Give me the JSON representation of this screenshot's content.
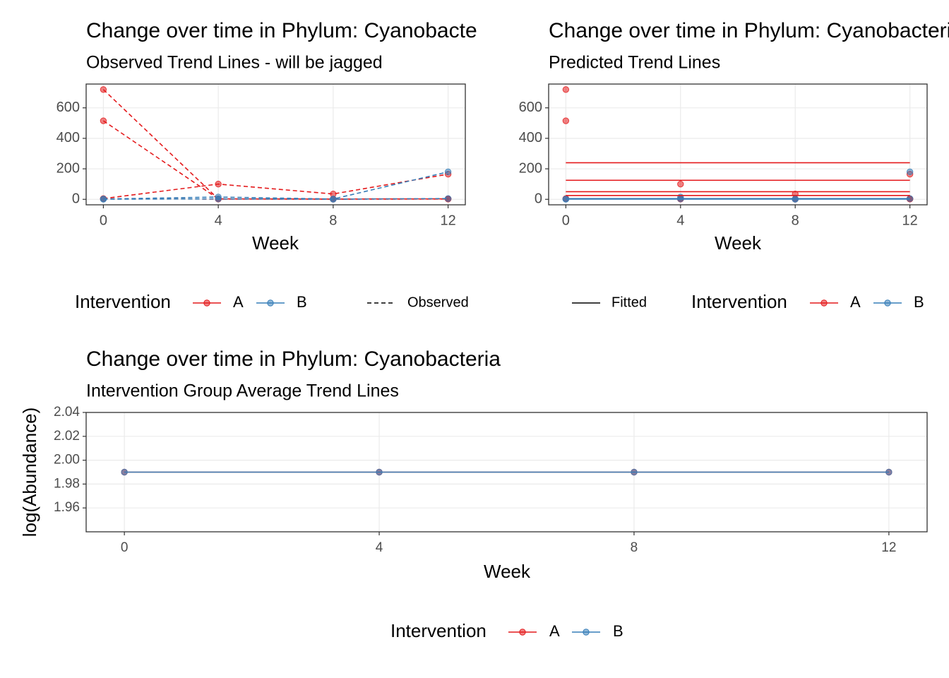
{
  "chart_data": [
    {
      "type": "line",
      "title": "Change over time in Phylum: Cyanobacteria",
      "subtitle": "Observed Trend Lines - will be jagged",
      "x_label": "Week",
      "x": [
        0,
        4,
        8,
        12
      ],
      "xlim": [
        -0.6,
        12.6
      ],
      "xticks": [
        0,
        4,
        8,
        12
      ],
      "ylim": [
        -36,
        756
      ],
      "yticks": [
        0,
        200,
        400,
        600
      ],
      "grid": true,
      "series": [
        {
          "color": "#e41a1c",
          "style": "dashed",
          "points": true,
          "values": [
            720,
            2,
            1,
            2
          ]
        },
        {
          "color": "#e41a1c",
          "style": "dashed",
          "points": true,
          "values": [
            515,
            3,
            2,
            3
          ]
        },
        {
          "color": "#e41a1c",
          "style": "dashed",
          "points": true,
          "values": [
            5,
            100,
            35,
            165
          ]
        },
        {
          "color": "#e41a1c",
          "style": "dashed",
          "points": true,
          "values": [
            3,
            2,
            2,
            3
          ]
        },
        {
          "color": "#377eb8",
          "style": "dashed",
          "points": true,
          "values": [
            2,
            15,
            2,
            180
          ]
        },
        {
          "color": "#377eb8",
          "style": "dashed",
          "points": true,
          "values": [
            1,
            3,
            1,
            5
          ]
        }
      ],
      "legend": {
        "title": "Intervention",
        "items": [
          {
            "label": "A",
            "color": "#e41a1c"
          },
          {
            "label": "B",
            "color": "#377eb8"
          }
        ],
        "linetype": {
          "label": "Observed",
          "style": "dashed"
        }
      }
    },
    {
      "type": "line",
      "title": "Change over time in Phylum: Cyanobacteria",
      "subtitle": "Predicted Trend Lines",
      "x_label": "Week",
      "x": [
        0,
        4,
        8,
        12
      ],
      "xlim": [
        -0.6,
        12.6
      ],
      "xticks": [
        0,
        4,
        8,
        12
      ],
      "ylim": [
        -36,
        756
      ],
      "yticks": [
        0,
        200,
        400,
        600
      ],
      "grid": true,
      "series": [
        {
          "color": "#e41a1c",
          "style": "none",
          "points": true,
          "values": [
            720,
            2,
            1,
            2
          ]
        },
        {
          "color": "#e41a1c",
          "style": "none",
          "points": true,
          "values": [
            515,
            3,
            2,
            3
          ]
        },
        {
          "color": "#e41a1c",
          "style": "none",
          "points": true,
          "values": [
            5,
            100,
            35,
            165
          ]
        },
        {
          "color": "#e41a1c",
          "style": "none",
          "points": true,
          "values": [
            3,
            2,
            2,
            3
          ]
        },
        {
          "color": "#377eb8",
          "style": "none",
          "points": true,
          "values": [
            2,
            15,
            2,
            180
          ]
        },
        {
          "color": "#377eb8",
          "style": "none",
          "points": true,
          "values": [
            1,
            3,
            1,
            5
          ]
        },
        {
          "color": "#e41a1c",
          "style": "solid",
          "points": false,
          "x": [
            0,
            12
          ],
          "values": [
            240,
            240
          ]
        },
        {
          "color": "#e41a1c",
          "style": "solid",
          "points": false,
          "x": [
            0,
            12
          ],
          "values": [
            125,
            125
          ]
        },
        {
          "color": "#e41a1c",
          "style": "solid",
          "points": false,
          "x": [
            0,
            12
          ],
          "values": [
            50,
            50
          ]
        },
        {
          "color": "#e41a1c",
          "style": "solid",
          "points": false,
          "x": [
            0,
            12
          ],
          "values": [
            25,
            25
          ]
        },
        {
          "color": "#377eb8",
          "style": "solid",
          "points": false,
          "x": [
            0,
            12
          ],
          "values": [
            5,
            5
          ]
        },
        {
          "color": "#377eb8",
          "style": "solid",
          "points": false,
          "x": [
            0,
            12
          ],
          "values": [
            1,
            1
          ]
        }
      ],
      "legend": {
        "title": "Intervention",
        "items": [
          {
            "label": "A",
            "color": "#e41a1c"
          },
          {
            "label": "B",
            "color": "#377eb8"
          }
        ],
        "linetype": {
          "label": "Fitted",
          "style": "solid"
        }
      }
    },
    {
      "type": "line",
      "title": "Change over time in Phylum: Cyanobacteria",
      "subtitle": "Intervention Group Average Trend Lines",
      "x_label": "Week",
      "y_label": "log(Abundance)",
      "x": [
        0,
        4,
        8,
        12
      ],
      "xlim": [
        -0.6,
        12.6
      ],
      "xticks": [
        0,
        4,
        8,
        12
      ],
      "ylim": [
        1.94,
        2.04
      ],
      "yticks": [
        1.96,
        1.98,
        {
          "value": 2,
          "label": "2.00"
        },
        2.02,
        2.04
      ],
      "grid": true,
      "series": [
        {
          "color": "#e41a1c",
          "style": "solid",
          "points": true,
          "values": [
            1.99,
            1.99,
            1.99,
            1.99
          ]
        },
        {
          "color": "#377eb8",
          "style": "solid",
          "points": true,
          "values": [
            1.99,
            1.99,
            1.99,
            1.99
          ]
        }
      ],
      "legend": {
        "title": "Intervention",
        "items": [
          {
            "label": "A",
            "color": "#e41a1c"
          },
          {
            "label": "B",
            "color": "#377eb8"
          }
        ]
      }
    }
  ]
}
